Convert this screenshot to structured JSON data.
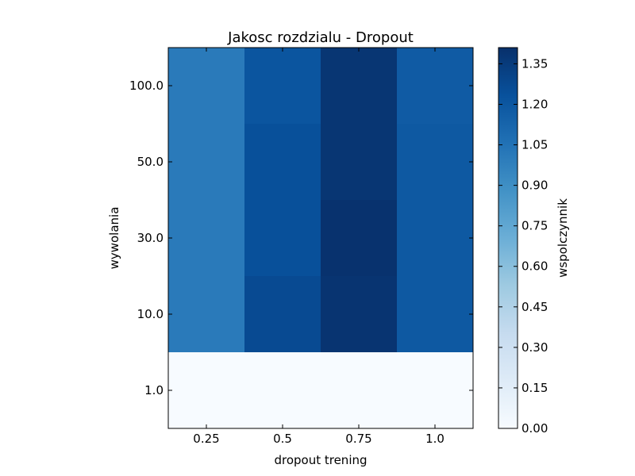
{
  "chart_data": {
    "type": "heatmap",
    "title": "Jakosc rozdzialu - Dropout",
    "xlabel": "dropout trening",
    "ylabel": "wywolania",
    "x_categories": [
      "0.25",
      "0.5",
      "0.75",
      "1.0"
    ],
    "y_categories": [
      "100.0",
      "50.0",
      "30.0",
      "10.0",
      "1.0"
    ],
    "values": [
      [
        1.01,
        1.21,
        1.38,
        1.18
      ],
      [
        1.01,
        1.24,
        1.38,
        1.19
      ],
      [
        1.01,
        1.24,
        1.4,
        1.19
      ],
      [
        1.01,
        1.27,
        1.39,
        1.19
      ],
      [
        0.0,
        0.0,
        0.0,
        0.0
      ]
    ],
    "colorbar": {
      "label": "wspolczynnik",
      "vmin": 0.0,
      "vmax": 1.41,
      "ticks": [
        "0.00",
        "0.15",
        "0.30",
        "0.45",
        "0.60",
        "0.75",
        "0.90",
        "1.05",
        "1.20",
        "1.35"
      ]
    },
    "colormap": "Blues",
    "grid": false
  }
}
